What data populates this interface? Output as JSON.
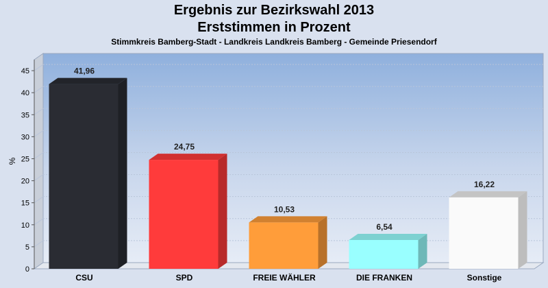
{
  "title": "Ergebnis zur Bezirkswahl 2013",
  "subtitle": "Erststimmen in Prozent",
  "subtitle2": "Stimmkreis Bamberg-Stadt - Landkreis Landkreis Bamberg - Gemeinde Priesendorf",
  "chart_data": {
    "type": "bar",
    "categories": [
      "CSU",
      "SPD",
      "FREIE WÄHLER",
      "DIE FRANKEN",
      "Sonstige"
    ],
    "values": [
      41.96,
      24.75,
      10.53,
      6.54,
      16.22
    ],
    "value_labels": [
      "41,96",
      "24,75",
      "10,53",
      "6,54",
      "16,22"
    ],
    "colors": [
      "#2a2c33",
      "#ff3b3b",
      "#ff9d3a",
      "#99ffff",
      "#fafafa"
    ],
    "ylabel": "%",
    "ylim": [
      0,
      47.5
    ],
    "yticks": [
      0,
      5,
      10,
      15,
      20,
      25,
      30,
      35,
      40,
      45
    ],
    "grid": true,
    "legend": "none"
  }
}
